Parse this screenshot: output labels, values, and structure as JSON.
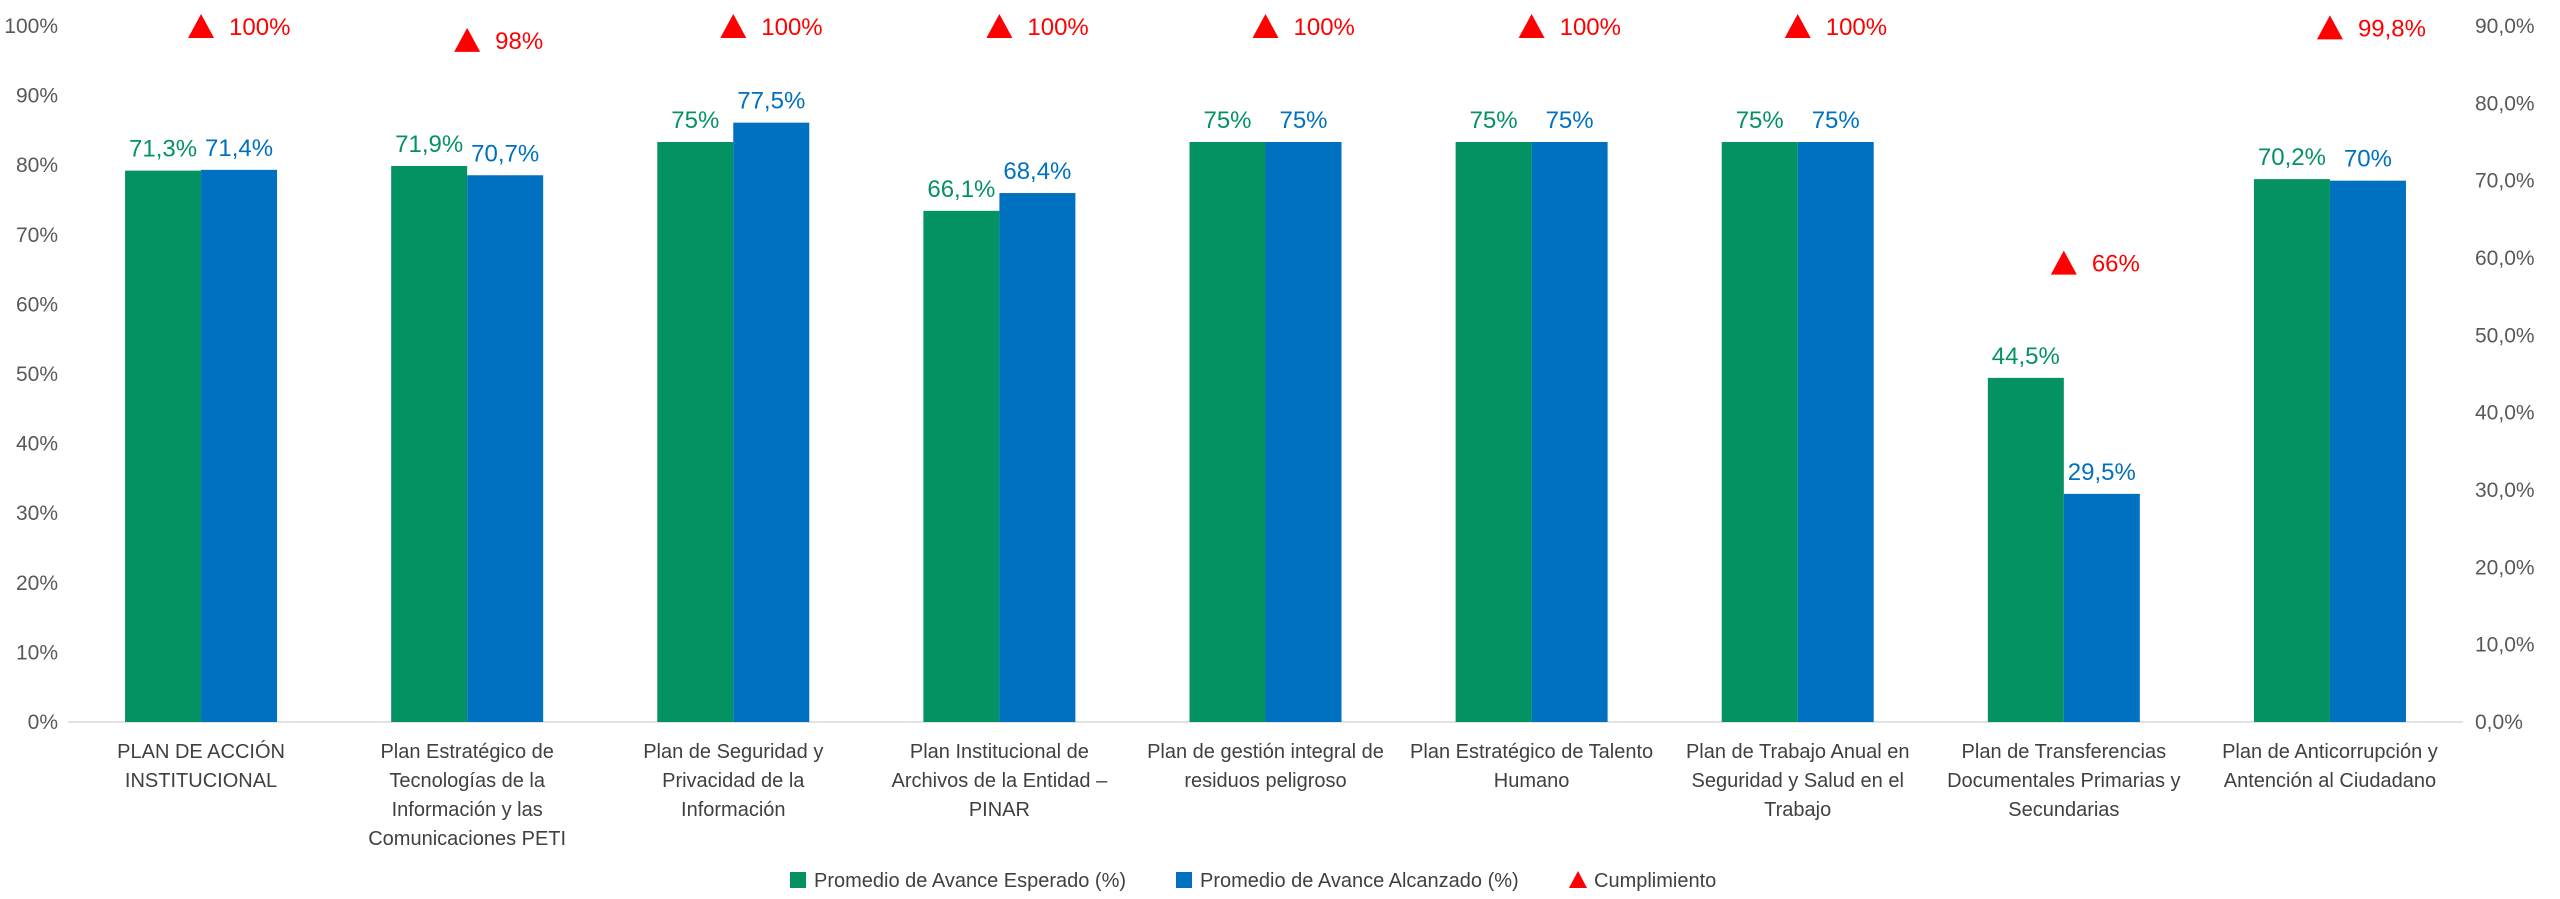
{
  "chart_data": {
    "type": "bar",
    "categories": [
      [
        "PLAN DE ACCIÓN",
        "INSTITUCIONAL"
      ],
      [
        "Plan Estratégico de",
        "Tecnologías de la",
        "Información y las",
        "Comunicaciones PETI"
      ],
      [
        "Plan de Seguridad y",
        "Privacidad de la",
        "Información"
      ],
      [
        "Plan Institucional de",
        "Archivos de la Entidad –",
        "PINAR"
      ],
      [
        "Plan de gestión integral de",
        "residuos peligroso"
      ],
      [
        "Plan Estratégico de Talento",
        "Humano"
      ],
      [
        "Plan de Trabajo Anual en",
        "Seguridad y Salud en el",
        "Trabajo"
      ],
      [
        "Plan de Transferencias",
        "Documentales Primarias y",
        "Secundarias"
      ],
      [
        "Plan de Anticorrupción y",
        "Antención al Ciudadano"
      ]
    ],
    "series": [
      {
        "name": "Promedio de Avance Esperado (%)",
        "axis": "right",
        "color": "#059262",
        "values": [
          71.3,
          71.9,
          75,
          66.1,
          75,
          75,
          75,
          44.5,
          70.2
        ],
        "labels": [
          "71,3%",
          "71,9%",
          "75%",
          "66,1%",
          "75%",
          "75%",
          "75%",
          "44,5%",
          "70,2%"
        ]
      },
      {
        "name": "Promedio de Avance Alcanzado (%)",
        "axis": "right",
        "color": "#0070C0",
        "values": [
          71.4,
          70.7,
          77.5,
          68.4,
          75,
          75,
          75,
          29.5,
          70
        ],
        "labels": [
          "71,4%",
          "70,7%",
          "77,5%",
          "68,4%",
          "75%",
          "75%",
          "75%",
          "29,5%",
          "70%"
        ]
      },
      {
        "name": "Cumplimiento",
        "axis": "left",
        "type": "marker",
        "marker": "triangle",
        "color": "#FF0000",
        "values": [
          100,
          98,
          100,
          100,
          100,
          100,
          100,
          66,
          99.8
        ],
        "labels": [
          "100%",
          "98%",
          "100%",
          "100%",
          "100%",
          "100%",
          "100%",
          "66%",
          "99,8%"
        ]
      }
    ],
    "left_axis": {
      "min": 0,
      "max": 100,
      "ticks": [
        "0%",
        "10%",
        "20%",
        "30%",
        "40%",
        "50%",
        "60%",
        "70%",
        "80%",
        "90%",
        "100%"
      ]
    },
    "right_axis": {
      "min": 0,
      "max": 90,
      "ticks": [
        "0,0%",
        "10,0%",
        "20,0%",
        "30,0%",
        "40,0%",
        "50,0%",
        "60,0%",
        "70,0%",
        "80,0%",
        "90,0%"
      ]
    },
    "grid": false,
    "legend_position": "bottom"
  }
}
